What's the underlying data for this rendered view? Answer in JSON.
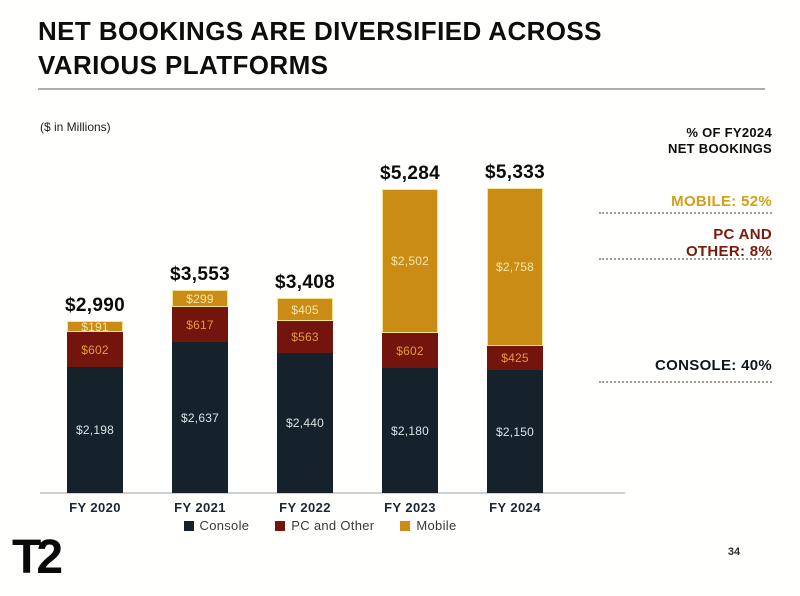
{
  "slide": {
    "title_line1": "NET BOOKINGS ARE DIVERSIFIED ACROSS",
    "title_line2": "VARIOUS PLATFORMS",
    "units_note": "($ in Millions)",
    "page_number": "34",
    "logo_text": "T2"
  },
  "right_panel": {
    "header_line1": "% OF FY2024",
    "header_line2": "NET BOOKINGS",
    "mobile_label": "MOBILE: 52%",
    "pc_label_line1": "PC AND",
    "pc_label_line2": "OTHER: 8%",
    "console_label": "CONSOLE: 40%"
  },
  "colors": {
    "console": "#15212b",
    "pc": "#73150c",
    "mobile": "#cb8c15",
    "mobile_edge": "#f2e493",
    "console_value_text": "#dbe4e4",
    "pc_value_text": "#e29a3e",
    "mobile_value_text": "#f2e7a9",
    "gold_text": "#d2a019",
    "red_text": "#7a1a0c",
    "dark_text": "#0f171e"
  },
  "chart_data": {
    "type": "bar",
    "stacked": true,
    "title": "NET BOOKINGS ARE DIVERSIFIED ACROSS VARIOUS PLATFORMS",
    "units": "($ in Millions)",
    "categories": [
      "FY 2020",
      "FY 2021",
      "FY 2022",
      "FY 2023",
      "FY 2024"
    ],
    "series": [
      {
        "name": "Console",
        "color_key": "console",
        "values": [
          2198,
          2637,
          2440,
          2180,
          2150
        ],
        "labels": [
          "$2,198",
          "$2,637",
          "$2,440",
          "$2,180",
          "$2,150"
        ]
      },
      {
        "name": "PC and Other",
        "color_key": "pc",
        "values": [
          602,
          617,
          563,
          602,
          425
        ],
        "labels": [
          "$602",
          "$617",
          "$563",
          "$602",
          "$425"
        ]
      },
      {
        "name": "Mobile",
        "color_key": "mobile",
        "values": [
          191,
          299,
          405,
          2502,
          2758
        ],
        "labels": [
          "$191",
          "$299",
          "$405",
          "$2,502",
          "$2,758"
        ]
      }
    ],
    "totals": [
      2990,
      3553,
      3408,
      5284,
      5333
    ],
    "total_labels": [
      "$2,990",
      "$3,553",
      "$3,408",
      "$5,284",
      "$5,333"
    ],
    "legend": [
      "Console",
      "PC and Other",
      "Mobile"
    ],
    "legend_position": "bottom",
    "annotations": [
      {
        "text": "MOBILE: 52%",
        "series": "Mobile"
      },
      {
        "text": "PC AND OTHER: 8%",
        "series": "PC and Other"
      },
      {
        "text": "CONSOLE: 40%",
        "series": "Console"
      }
    ]
  }
}
